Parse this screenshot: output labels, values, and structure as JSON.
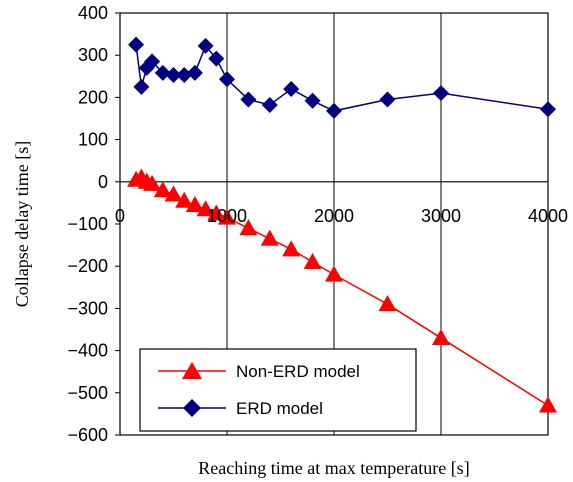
{
  "chart_data": {
    "type": "line",
    "xlabel": "Reaching time at max temperature [s]",
    "ylabel": "Collapse delay time [s]",
    "xlim": [
      0,
      4000
    ],
    "ylim": [
      -600,
      400
    ],
    "xticks": [
      0,
      1000,
      2000,
      3000,
      4000
    ],
    "yticks": [
      400,
      300,
      200,
      100,
      0,
      -100,
      -200,
      -300,
      -400,
      -500,
      -600
    ],
    "xtick_labels": [
      "0",
      "1000",
      "2000",
      "3000",
      "4000"
    ],
    "ytick_labels": [
      "400",
      "300",
      "200",
      "100",
      "0",
      "−100",
      "−200",
      "−300",
      "−400",
      "−500",
      "−600"
    ],
    "grid": "vertical",
    "legend_position": "bottom-left",
    "series": [
      {
        "name": "Non-ERD model",
        "color": "#ff0000",
        "marker": "triangle",
        "x": [
          150,
          200,
          250,
          300,
          400,
          500,
          600,
          700,
          800,
          900,
          1000,
          1200,
          1400,
          1600,
          1800,
          2000,
          2500,
          3000,
          4000
        ],
        "y": [
          5,
          10,
          0,
          -5,
          -20,
          -30,
          -45,
          -55,
          -65,
          -75,
          -85,
          -110,
          -135,
          -160,
          -190,
          -220,
          -290,
          -370,
          -530
        ]
      },
      {
        "name": "ERD model",
        "color": "#000080",
        "marker": "diamond",
        "x": [
          150,
          200,
          250,
          300,
          400,
          500,
          600,
          700,
          800,
          900,
          1000,
          1200,
          1400,
          1600,
          1800,
          2000,
          2500,
          3000,
          4000
        ],
        "y": [
          325,
          225,
          270,
          285,
          258,
          253,
          253,
          258,
          322,
          292,
          243,
          195,
          182,
          220,
          192,
          168,
          195,
          210,
          172
        ]
      }
    ]
  }
}
